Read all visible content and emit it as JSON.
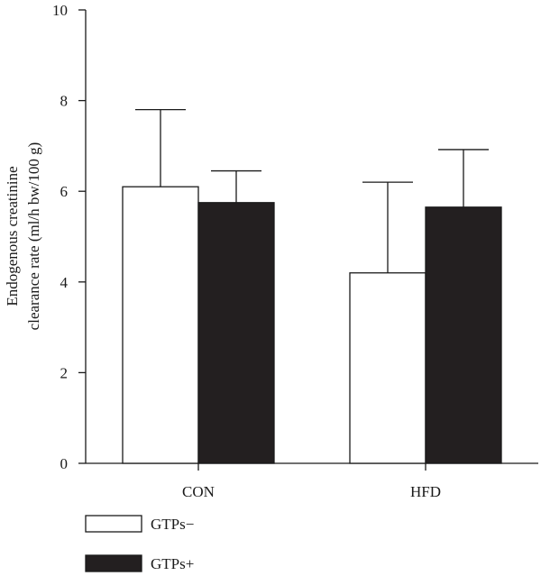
{
  "chart_data": {
    "type": "bar",
    "categories": [
      "CON",
      "HFD"
    ],
    "series": [
      {
        "name": "GTPs−",
        "values": [
          6.1,
          4.2
        ],
        "errors": [
          1.7,
          2.0
        ],
        "color": "#ffffff"
      },
      {
        "name": "GTPs+",
        "values": [
          5.75,
          5.65
        ],
        "errors": [
          0.7,
          1.27
        ],
        "color": "#231f20"
      }
    ],
    "ylabel_lines": [
      "Endogenous creatinine",
      "clearance rate (ml/h bw/100 g)"
    ],
    "xlabel": "",
    "ylim": [
      0,
      10
    ],
    "yticks": [
      "0",
      "2",
      "4",
      "6",
      "8",
      "10"
    ],
    "grid": false,
    "legend_position": "bottom-left"
  }
}
